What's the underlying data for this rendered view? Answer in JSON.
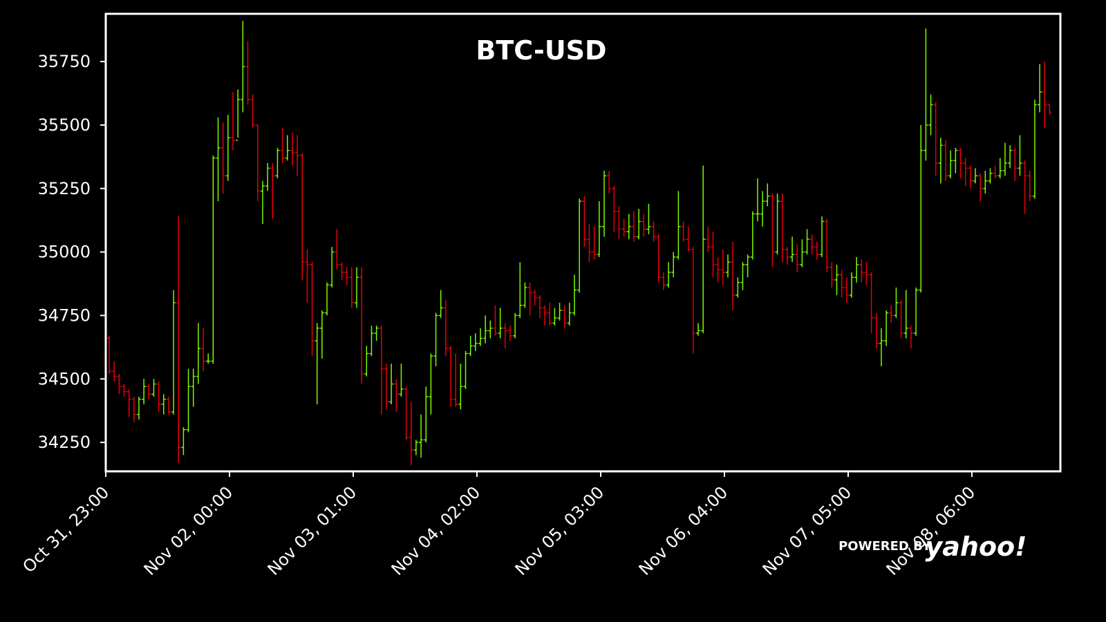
{
  "chart_data": {
    "type": "ohlc",
    "title": "BTC-USD",
    "watermark": "POWERED BY",
    "watermark_brand": "yahoo!",
    "up_color": "#7cfc00",
    "down_color": "#e8000b",
    "ylim": [
      34136,
      35938
    ],
    "yticks": [
      34250,
      34500,
      34750,
      35000,
      35250,
      35500,
      35750
    ],
    "categories": [
      "Oct 31, 23:00",
      null,
      null,
      null,
      null,
      null,
      null,
      null,
      null,
      null,
      null,
      null,
      null,
      null,
      null,
      null,
      null,
      null,
      null,
      null,
      null,
      null,
      null,
      null,
      null,
      "Nov 02, 00:00",
      null,
      null,
      null,
      null,
      null,
      null,
      null,
      null,
      null,
      null,
      null,
      null,
      null,
      null,
      null,
      null,
      null,
      null,
      null,
      null,
      null,
      null,
      null,
      null,
      "Nov 03, 01:00",
      null,
      null,
      null,
      null,
      null,
      null,
      null,
      null,
      null,
      null,
      null,
      null,
      null,
      null,
      null,
      null,
      null,
      null,
      null,
      null,
      null,
      null,
      null,
      null,
      "Nov 04, 02:00",
      null,
      null,
      null,
      null,
      null,
      null,
      null,
      null,
      null,
      null,
      null,
      null,
      null,
      null,
      null,
      null,
      null,
      null,
      null,
      null,
      null,
      null,
      null,
      null,
      "Nov 05, 03:00",
      null,
      null,
      null,
      null,
      null,
      null,
      null,
      null,
      null,
      null,
      null,
      null,
      null,
      null,
      null,
      null,
      null,
      null,
      null,
      null,
      null,
      null,
      null,
      null,
      "Nov 06, 04:00",
      null,
      null,
      null,
      null,
      null,
      null,
      null,
      null,
      null,
      null,
      null,
      null,
      null,
      null,
      null,
      null,
      null,
      null,
      null,
      null,
      null,
      null,
      null,
      null,
      "Nov 07, 05:00",
      null,
      null,
      null,
      null,
      null,
      null,
      null,
      null,
      null,
      null,
      null,
      null,
      null,
      null,
      null,
      null,
      null,
      null,
      null,
      null,
      null,
      null,
      null,
      null,
      "Nov 08, 06:00",
      null,
      null,
      null,
      null,
      null,
      null,
      null,
      null,
      null,
      null,
      null,
      null,
      null,
      null,
      null
    ],
    "open": [
      34660,
      34530,
      34510,
      34470,
      34450,
      34420,
      34360,
      34420,
      34470,
      34440,
      34480,
      34400,
      34420,
      34370,
      34800,
      34230,
      34300,
      34470,
      34510,
      34620,
      34570,
      34570,
      35370,
      35410,
      35300,
      35450,
      35440,
      35600,
      35730,
      35600,
      35500,
      35240,
      35260,
      35330,
      35300,
      35400,
      35370,
      35400,
      35390,
      35380,
      34960,
      34950,
      34650,
      34700,
      34760,
      34870,
      35000,
      34950,
      34920,
      34900,
      34800,
      34900,
      34520,
      34600,
      34680,
      34700,
      34540,
      34410,
      34480,
      34440,
      34460,
      34270,
      34220,
      34250,
      34260,
      34430,
      34590,
      34750,
      34780,
      34620,
      34420,
      34400,
      34470,
      34600,
      34630,
      34640,
      34660,
      34690,
      34700,
      34680,
      34700,
      34690,
      34670,
      34750,
      34790,
      34860,
      34840,
      34820,
      34780,
      34760,
      34720,
      34740,
      34770,
      34720,
      34760,
      34850,
      35200,
      35050,
      35000,
      34990,
      35100,
      35300,
      35250,
      35160,
      35090,
      35080,
      35100,
      35060,
      35120,
      35090,
      35100,
      35060,
      34900,
      34870,
      34920,
      34980,
      35100,
      35050,
      35010,
      34680,
      34690,
      35050,
      35020,
      34950,
      34930,
      34920,
      34960,
      34830,
      34880,
      34950,
      34980,
      35150,
      35150,
      35200,
      35220,
      35000,
      35200,
      35010,
      34980,
      34990,
      34950,
      35000,
      35050,
      35020,
      34990,
      35120,
      34940,
      34890,
      34910,
      34860,
      34830,
      34900,
      34950,
      34920,
      34910,
      34740,
      34640,
      34650,
      34760,
      34750,
      34800,
      34680,
      34700,
      34680,
      34850,
      35400,
      35500,
      35580,
      35350,
      35420,
      35300,
      35360,
      35400,
      35350,
      35330,
      35280,
      35300,
      35250,
      35280,
      35310,
      35300,
      35320,
      35350,
      35400,
      35330,
      35350,
      35300,
      35220,
      35580,
      35630,
      35580
    ],
    "high": [
      34670,
      34570,
      34520,
      34480,
      34460,
      34430,
      34430,
      34500,
      34480,
      34500,
      34490,
      34440,
      34430,
      34850,
      35140,
      34310,
      34540,
      34540,
      34720,
      34700,
      34600,
      35380,
      35530,
      35510,
      35540,
      35630,
      35640,
      35910,
      35830,
      35620,
      35500,
      35280,
      35350,
      35350,
      35410,
      35490,
      35460,
      35470,
      35460,
      35390,
      35010,
      34960,
      34720,
      34770,
      34880,
      35020,
      35090,
      34960,
      34940,
      34940,
      34940,
      34940,
      34630,
      34710,
      34710,
      34710,
      34560,
      34560,
      34500,
      34560,
      34470,
      34410,
      34260,
      34360,
      34470,
      34600,
      34760,
      34850,
      34810,
      34630,
      34600,
      34560,
      34610,
      34670,
      34680,
      34700,
      34750,
      34730,
      34790,
      34780,
      34720,
      34710,
      34760,
      34960,
      34880,
      34880,
      34850,
      34830,
      34790,
      34800,
      34780,
      34800,
      34790,
      34800,
      34910,
      35210,
      35220,
      35110,
      35100,
      35200,
      35320,
      35320,
      35260,
      35180,
      35130,
      35150,
      35160,
      35170,
      35150,
      35190,
      35120,
      35070,
      34920,
      34960,
      35000,
      35240,
      35120,
      35100,
      35020,
      34720,
      35340,
      35100,
      35080,
      34980,
      35010,
      34990,
      35040,
      34900,
      34960,
      34990,
      35160,
      35290,
      35240,
      35270,
      35230,
      35230,
      35230,
      35020,
      35060,
      35030,
      35050,
      35090,
      35070,
      35040,
      35140,
      35130,
      34960,
      34950,
      34930,
      34900,
      34920,
      34980,
      34970,
      34960,
      34920,
      34760,
      34700,
      34770,
      34790,
      34860,
      34810,
      34850,
      34710,
      34860,
      35500,
      35880,
      35620,
      35590,
      35450,
      35440,
      35400,
      35410,
      35410,
      35370,
      35340,
      35330,
      35310,
      35320,
      35330,
      35340,
      35370,
      35430,
      35420,
      35410,
      35460,
      35360,
      35320,
      35600,
      35740,
      35750,
      35580
    ],
    "low": [
      34520,
      34490,
      34440,
      34430,
      34350,
      34330,
      34340,
      34400,
      34420,
      34430,
      34370,
      34360,
      34360,
      34360,
      34170,
      34200,
      34290,
      34390,
      34480,
      34530,
      34560,
      34560,
      35200,
      35230,
      35280,
      35400,
      35450,
      35550,
      35580,
      35490,
      35200,
      35110,
      35240,
      35130,
      35290,
      35350,
      35360,
      35340,
      35300,
      34890,
      34800,
      34590,
      34400,
      34580,
      34750,
      34860,
      34930,
      34890,
      34870,
      34780,
      34780,
      34480,
      34510,
      34590,
      34650,
      34360,
      34380,
      34400,
      34370,
      34430,
      34260,
      34160,
      34200,
      34190,
      34250,
      34360,
      34550,
      34740,
      34590,
      34390,
      34390,
      34380,
      34460,
      34590,
      34610,
      34630,
      34640,
      34660,
      34670,
      34660,
      34620,
      34650,
      34660,
      34740,
      34780,
      34750,
      34790,
      34740,
      34710,
      34710,
      34710,
      34730,
      34700,
      34710,
      34750,
      34840,
      35020,
      34960,
      34970,
      34980,
      35060,
      35230,
      35080,
      35050,
      35060,
      35050,
      35040,
      35050,
      35060,
      35070,
      35040,
      34880,
      34850,
      34860,
      34900,
      34970,
      35040,
      35000,
      34600,
      34670,
      34680,
      35000,
      34900,
      34880,
      34870,
      34900,
      34770,
      34820,
      34850,
      34900,
      34970,
      35120,
      35100,
      35180,
      34940,
      34990,
      34960,
      34950,
      34960,
      34920,
      34940,
      34990,
      34990,
      34970,
      34980,
      34920,
      34860,
      34830,
      34820,
      34800,
      34820,
      34880,
      34880,
      34870,
      34680,
      34620,
      34550,
      34630,
      34720,
      34740,
      34660,
      34660,
      34620,
      34670,
      34840,
      35360,
      35460,
      35300,
      35270,
      35280,
      35290,
      35310,
      35290,
      35260,
      35250,
      35270,
      35200,
      35230,
      35270,
      35290,
      35290,
      35300,
      35330,
      35280,
      35300,
      35150,
      35200,
      35210,
      35550,
      35490,
      35540
    ],
    "close": [
      34530,
      34510,
      34470,
      34450,
      34420,
      34360,
      34420,
      34470,
      34440,
      34480,
      34400,
      34420,
      34370,
      34800,
      34230,
      34300,
      34470,
      34510,
      34620,
      34570,
      34570,
      35370,
      35410,
      35300,
      35450,
      35440,
      35600,
      35730,
      35600,
      35500,
      35240,
      35260,
      35330,
      35300,
      35400,
      35370,
      35400,
      35390,
      35380,
      34960,
      34950,
      34650,
      34700,
      34760,
      34870,
      35000,
      34950,
      34920,
      34900,
      34800,
      34900,
      34520,
      34600,
      34680,
      34700,
      34540,
      34410,
      34480,
      34440,
      34460,
      34270,
      34220,
      34250,
      34260,
      34430,
      34590,
      34750,
      34780,
      34620,
      34420,
      34400,
      34470,
      34600,
      34630,
      34640,
      34660,
      34690,
      34700,
      34680,
      34700,
      34690,
      34670,
      34750,
      34790,
      34860,
      34840,
      34820,
      34780,
      34760,
      34720,
      34740,
      34770,
      34720,
      34760,
      34850,
      35200,
      35050,
      35000,
      34990,
      35100,
      35300,
      35250,
      35160,
      35090,
      35080,
      35100,
      35060,
      35120,
      35090,
      35100,
      35060,
      34900,
      34870,
      34920,
      34980,
      35100,
      35050,
      35010,
      34680,
      34690,
      35050,
      35020,
      34950,
      34930,
      34920,
      34960,
      34830,
      34880,
      34950,
      34980,
      35150,
      35150,
      35200,
      35220,
      35000,
      35200,
      35010,
      34980,
      34990,
      34950,
      35000,
      35050,
      35020,
      34990,
      35120,
      34940,
      34890,
      34910,
      34860,
      34830,
      34900,
      34950,
      34920,
      34910,
      34740,
      34640,
      34650,
      34760,
      34750,
      34800,
      34680,
      34700,
      34680,
      34850,
      35400,
      35500,
      35580,
      35350,
      35420,
      35300,
      35360,
      35400,
      35350,
      35330,
      35280,
      35300,
      35250,
      35280,
      35310,
      35300,
      35320,
      35350,
      35400,
      35330,
      35350,
      35300,
      35220,
      35580,
      35630,
      35580,
      35550
    ]
  }
}
